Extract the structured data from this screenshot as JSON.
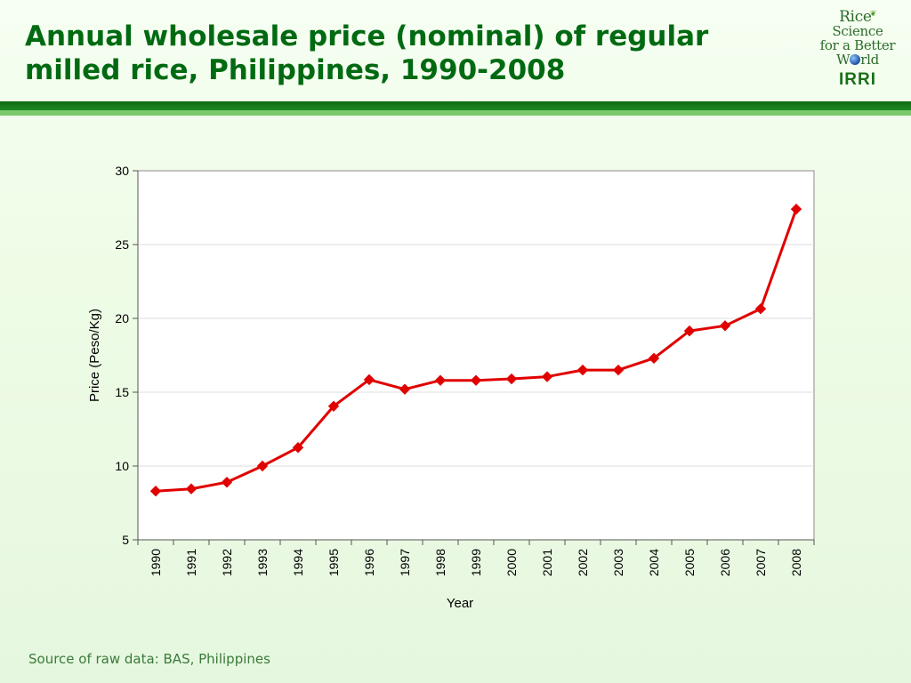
{
  "slide": {
    "title_line1": "Annual wholesale price (nominal) of regular",
    "title_line2": "milled rice, Philippines, 1990-2008",
    "source": "Source of raw data: BAS, Philippines"
  },
  "logo": {
    "line1": "Rice",
    "line2": "Science",
    "line3": "for a Better",
    "line4_a": "W",
    "line4_b": "rld",
    "org": "IRRI"
  },
  "colors": {
    "title": "#006a12",
    "series": "#e00000",
    "divider": "#0d6a12"
  },
  "chart_data": {
    "type": "line",
    "xlabel": "Year",
    "ylabel": "Price (Peso/Kg)",
    "ylim": [
      5,
      30
    ],
    "yticks": [
      5,
      10,
      15,
      20,
      25,
      30
    ],
    "grid": true,
    "categories": [
      "1990",
      "1991",
      "1992",
      "1993",
      "1994",
      "1995",
      "1996",
      "1997",
      "1998",
      "1999",
      "2000",
      "2001",
      "2002",
      "2003",
      "2004",
      "2005",
      "2006",
      "2007",
      "2008"
    ],
    "series": [
      {
        "values": [
          8.3,
          8.45,
          8.9,
          10.0,
          11.25,
          14.05,
          15.85,
          15.2,
          15.8,
          15.8,
          15.9,
          16.05,
          16.5,
          16.5,
          17.3,
          19.15,
          19.5,
          20.65,
          27.4
        ],
        "marker": "diamond"
      }
    ]
  }
}
